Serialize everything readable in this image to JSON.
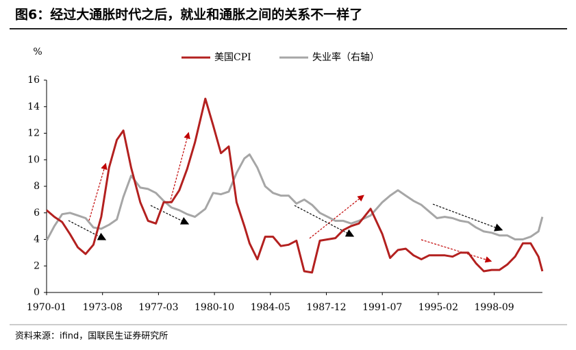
{
  "chart_data": {
    "type": "line",
    "title": "图6：经过大通胀时代之后，就业和通胀之间的关系不一样了",
    "y_label": "%",
    "source": "资料来源：ifind，国联民生证券研究所",
    "x": [
      "1970-01",
      "1970-07",
      "1971-01",
      "1971-07",
      "1972-01",
      "1972-07",
      "1973-01",
      "1973-07",
      "1974-01",
      "1974-07",
      "1974-12",
      "1975-06",
      "1976-01",
      "1976-07",
      "1977-01",
      "1977-07",
      "1978-01",
      "1978-07",
      "1979-01",
      "1979-07",
      "1980-03",
      "1980-09",
      "1981-03",
      "1981-09",
      "1982-03",
      "1982-09",
      "1983-01",
      "1983-07",
      "1984-01",
      "1984-07",
      "1985-01",
      "1985-07",
      "1986-01",
      "1986-07",
      "1987-01",
      "1987-07",
      "1988-01",
      "1988-07",
      "1989-01",
      "1989-07",
      "1990-01",
      "1990-10",
      "1991-07",
      "1992-01",
      "1992-07",
      "1993-01",
      "1993-07",
      "1994-01",
      "1994-07",
      "1995-01",
      "1995-07",
      "1996-01",
      "1996-07",
      "1997-01",
      "1997-07",
      "1998-01",
      "1998-07",
      "1999-01",
      "1999-07",
      "2000-01",
      "2000-07",
      "2001-01",
      "2001-07",
      "2001-10"
    ],
    "series": [
      {
        "name": "美国CPI",
        "color": "#b3201f",
        "values": [
          6.2,
          5.7,
          5.3,
          4.4,
          3.4,
          2.9,
          3.6,
          5.7,
          9.4,
          11.5,
          12.2,
          9.4,
          6.8,
          5.4,
          5.2,
          6.8,
          6.8,
          7.7,
          9.3,
          11.3,
          14.6,
          12.6,
          10.5,
          11.0,
          6.8,
          5.0,
          3.7,
          2.5,
          4.2,
          4.2,
          3.5,
          3.6,
          3.9,
          1.6,
          1.5,
          3.9,
          4.0,
          4.1,
          4.7,
          5.0,
          5.2,
          6.3,
          4.4,
          2.6,
          3.2,
          3.3,
          2.8,
          2.5,
          2.8,
          2.8,
          2.8,
          2.7,
          3.0,
          3.0,
          2.2,
          1.6,
          1.7,
          1.7,
          2.1,
          2.7,
          3.7,
          3.7,
          2.7,
          1.6
        ]
      },
      {
        "name": "失业率（右轴）",
        "color": "#a6a6a6",
        "values": [
          3.9,
          5.0,
          5.9,
          6.0,
          5.8,
          5.6,
          4.9,
          4.8,
          5.1,
          5.5,
          7.2,
          8.8,
          7.9,
          7.8,
          7.5,
          6.9,
          6.4,
          6.2,
          5.9,
          5.7,
          6.3,
          7.5,
          7.4,
          7.6,
          9.0,
          10.1,
          10.4,
          9.4,
          8.0,
          7.5,
          7.3,
          7.3,
          6.7,
          7.0,
          6.6,
          6.0,
          5.7,
          5.4,
          5.4,
          5.2,
          5.4,
          5.8,
          6.8,
          7.3,
          7.7,
          7.3,
          6.9,
          6.6,
          6.1,
          5.6,
          5.7,
          5.6,
          5.4,
          5.3,
          4.9,
          4.6,
          4.5,
          4.3,
          4.3,
          4.0,
          4.0,
          4.2,
          4.6,
          5.7
        ]
      }
    ],
    "xticks": [
      "1970-01",
      "1973-08",
      "1977-03",
      "1980-10",
      "1984-05",
      "1987-12",
      "1991-07",
      "1995-02",
      "1998-09"
    ],
    "ylim": [
      0,
      16
    ],
    "yticks": [
      0,
      2,
      4,
      6,
      8,
      10,
      12,
      14,
      16
    ],
    "legend": "top"
  }
}
